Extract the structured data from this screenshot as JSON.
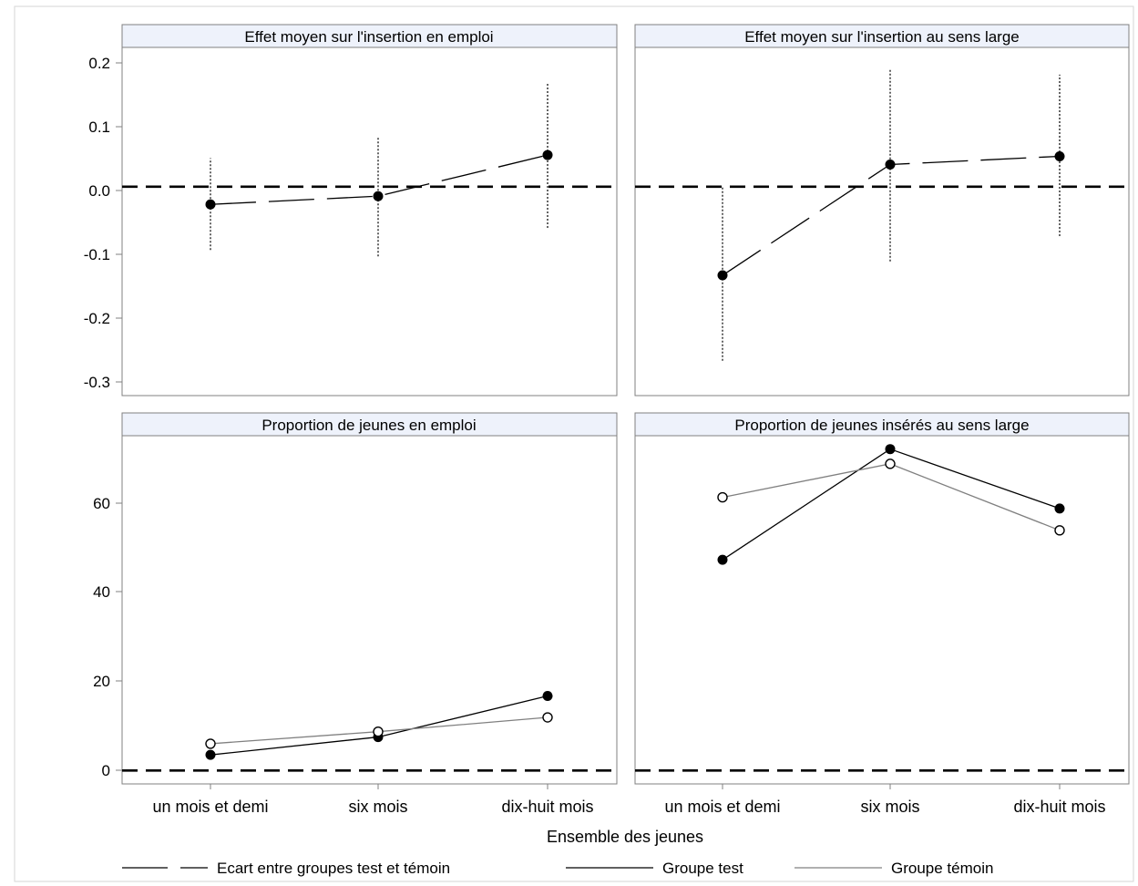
{
  "chart_data": [
    {
      "type": "line",
      "title": "Effet moyen sur l'insertion en emploi",
      "categories": [
        "un mois et demi",
        "six mois",
        "dix-huit mois"
      ],
      "ylim": [
        -0.33,
        0.22
      ],
      "yticks": [
        0.2,
        0.1,
        0.0,
        -0.1,
        -0.2,
        -0.3
      ],
      "ytick_labels": [
        "0.2",
        "0.1",
        "0.0",
        "-0.1",
        "-0.2",
        "-0.3"
      ],
      "reference_line": 0,
      "series": [
        {
          "name": "Ecart entre groupes test et témoin",
          "style": "long-dash",
          "values": [
            -0.028,
            -0.015,
            0.05
          ],
          "lower": [
            -0.1,
            -0.11,
            -0.065
          ],
          "upper": [
            0.045,
            0.078,
            0.163
          ]
        }
      ]
    },
    {
      "type": "line",
      "title": "Effet moyen sur l'insertion au sens large",
      "categories": [
        "un mois et demi",
        "six mois",
        "dix-huit mois"
      ],
      "ylim": [
        -0.33,
        0.22
      ],
      "reference_line": 0,
      "series": [
        {
          "name": "Ecart entre groupes test et témoin",
          "style": "long-dash",
          "values": [
            -0.14,
            0.035,
            0.048
          ],
          "lower": [
            -0.275,
            -0.118,
            -0.078
          ],
          "upper": [
            0.0,
            0.185,
            0.177
          ]
        }
      ]
    },
    {
      "type": "line",
      "title": "Proportion de jeunes en emploi",
      "categories": [
        "un mois et demi",
        "six mois",
        "dix-huit mois"
      ],
      "ylim": [
        -3,
        75
      ],
      "yticks": [
        60,
        40,
        20,
        0
      ],
      "ytick_labels": [
        "60",
        "40",
        "20",
        "0"
      ],
      "reference_line": 0,
      "series": [
        {
          "name": "Groupe test",
          "style": "solid-dark",
          "marker": "filled",
          "values": [
            3.5,
            7.5,
            16.7
          ]
        },
        {
          "name": "Groupe témoin",
          "style": "solid-gray",
          "marker": "hollow",
          "values": [
            6.0,
            8.7,
            11.9
          ]
        }
      ]
    },
    {
      "type": "line",
      "title": "Proportion de jeunes insérés au sens large",
      "categories": [
        "un mois et demi",
        "six mois",
        "dix-huit mois"
      ],
      "ylim": [
        -3,
        75
      ],
      "reference_line": 0,
      "series": [
        {
          "name": "Groupe test",
          "style": "solid-dark",
          "marker": "filled",
          "values": [
            47.2,
            72.0,
            58.7
          ]
        },
        {
          "name": "Groupe témoin",
          "style": "solid-gray",
          "marker": "hollow",
          "values": [
            61.2,
            68.7,
            53.8
          ]
        }
      ]
    }
  ],
  "xlabel": "Ensemble des jeunes",
  "legend": [
    {
      "label": "Ecart entre groupes test et témoin",
      "style": "long-dash"
    },
    {
      "label": "Groupe test",
      "style": "solid-dark"
    },
    {
      "label": "Groupe témoin",
      "style": "solid-gray"
    }
  ],
  "colors": {
    "panel_header_bg": "#eef2fb",
    "frame": "#808080",
    "test": "#000000",
    "temoin": "#808080"
  }
}
